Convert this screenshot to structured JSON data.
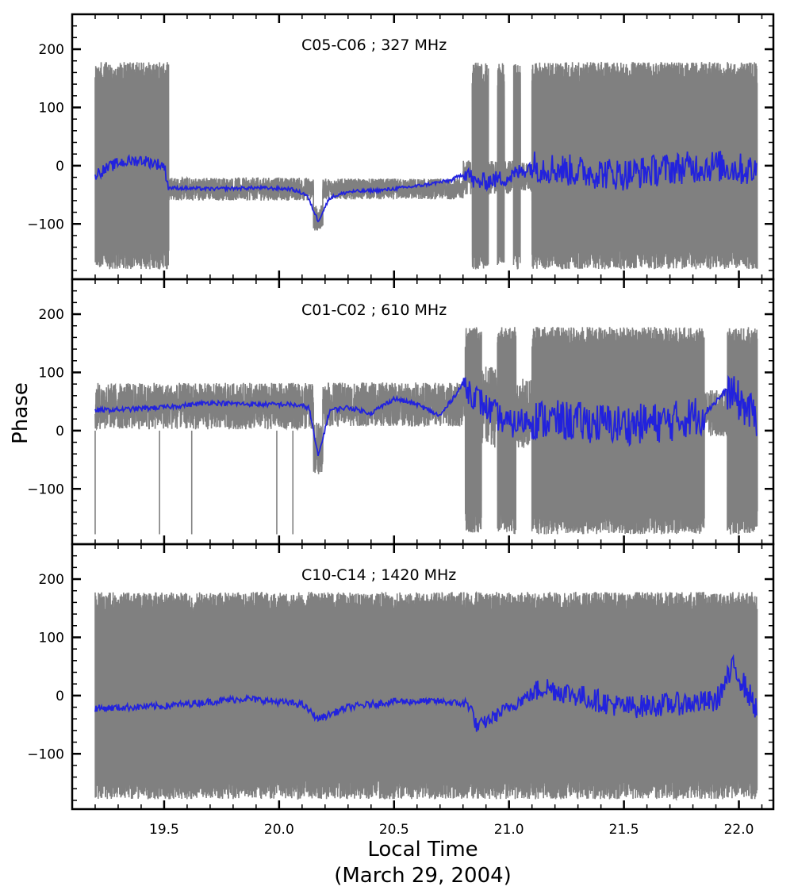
{
  "figure": {
    "ylabel": "Phase",
    "xlabel_line1": "Local Time",
    "xlabel_line2": "(March 29, 2004)"
  },
  "colors": {
    "raw": "#808080",
    "smooth": "#2222dd",
    "axes": "#000000"
  },
  "chart_data": [
    {
      "type": "line",
      "title": "C05-C06 ; 327 MHz",
      "xlim": [
        19.1,
        22.15
      ],
      "ylim": [
        -195,
        260
      ],
      "xticks": [
        "19.5",
        "20.0",
        "20.5",
        "21.0",
        "21.5",
        "22.0"
      ],
      "yticks": [
        "200",
        "100",
        "0",
        "−100"
      ],
      "x_range": [
        19.2,
        22.08
      ],
      "series": [
        {
          "segments": [
            {
              "x": [
                19.2,
                19.52
              ],
              "center": 0,
              "spread": 178,
              "wrapped": true
            },
            {
              "x": [
                19.52,
                20.15
              ],
              "center": -40,
              "spread": 20
            },
            {
              "x": [
                20.15,
                20.19
              ],
              "center": -90,
              "spread": 22
            },
            {
              "x": [
                20.19,
                20.8
              ],
              "center": -40,
              "spread": 18
            },
            {
              "x": [
                20.8,
                20.84
              ],
              "center": -20,
              "spread": 30
            },
            {
              "x": [
                20.84,
                20.91
              ],
              "center": 0,
              "spread": 178,
              "wrapped": true
            },
            {
              "x": [
                20.91,
                20.95
              ],
              "center": -20,
              "spread": 30
            },
            {
              "x": [
                20.95,
                20.98
              ],
              "center": 0,
              "spread": 178,
              "wrapped": true
            },
            {
              "x": [
                20.98,
                21.02
              ],
              "center": -20,
              "spread": 30
            },
            {
              "x": [
                21.02,
                21.05
              ],
              "center": 0,
              "spread": 178,
              "wrapped": true
            },
            {
              "x": [
                21.05,
                21.1
              ],
              "center": -20,
              "spread": 25
            },
            {
              "x": [
                21.1,
                22.08
              ],
              "center": 0,
              "spread": 178,
              "wrapped": true
            }
          ]
        },
        {
          "points": [
            [
              19.2,
              -15
            ],
            [
              19.3,
              5
            ],
            [
              19.4,
              10
            ],
            [
              19.5,
              0
            ],
            [
              19.52,
              -38
            ],
            [
              19.7,
              -40
            ],
            [
              19.9,
              -38
            ],
            [
              20.05,
              -40
            ],
            [
              20.12,
              -50
            ],
            [
              20.17,
              -95
            ],
            [
              20.22,
              -55
            ],
            [
              20.3,
              -45
            ],
            [
              20.45,
              -42
            ],
            [
              20.6,
              -35
            ],
            [
              20.75,
              -25
            ],
            [
              20.82,
              -10
            ],
            [
              20.85,
              -30
            ],
            [
              21.0,
              -20
            ],
            [
              21.1,
              0
            ],
            [
              21.3,
              -10
            ],
            [
              21.5,
              -15
            ],
            [
              21.7,
              -5
            ],
            [
              21.9,
              0
            ],
            [
              22.08,
              -10
            ]
          ],
          "noise": [
            {
              "x": [
                19.2,
                19.52
              ],
              "amp": 10
            },
            {
              "x": [
                19.52,
                20.8
              ],
              "amp": 3
            },
            {
              "x": [
                20.8,
                21.1
              ],
              "amp": 15
            },
            {
              "x": [
                21.1,
                22.08
              ],
              "amp": 28
            }
          ]
        }
      ]
    },
    {
      "type": "line",
      "title": "C01-C02 ; 610 MHz",
      "xlim": [
        19.1,
        22.15
      ],
      "ylim": [
        -195,
        260
      ],
      "xticks": [
        "19.5",
        "20.0",
        "20.5",
        "21.0",
        "21.5",
        "22.0"
      ],
      "yticks": [
        "200",
        "100",
        "0",
        "−100"
      ],
      "x_range": [
        19.2,
        22.08
      ],
      "series": [
        {
          "segments": [
            {
              "x": [
                19.2,
                20.15
              ],
              "center": 42,
              "spread": 40
            },
            {
              "x": [
                20.15,
                20.19
              ],
              "center": -30,
              "spread": 45
            },
            {
              "x": [
                20.19,
                20.81
              ],
              "center": 45,
              "spread": 38
            },
            {
              "x": [
                20.81,
                20.88
              ],
              "center": 0,
              "spread": 178,
              "wrapped": true
            },
            {
              "x": [
                20.88,
                20.95
              ],
              "center": 40,
              "spread": 70
            },
            {
              "x": [
                20.95,
                21.03
              ],
              "center": 0,
              "spread": 178,
              "wrapped": true
            },
            {
              "x": [
                21.03,
                21.1
              ],
              "center": 30,
              "spread": 60
            },
            {
              "x": [
                21.1,
                21.85
              ],
              "center": 0,
              "spread": 178,
              "wrapped": true
            },
            {
              "x": [
                21.85,
                21.95
              ],
              "center": 30,
              "spread": 40
            },
            {
              "x": [
                21.95,
                22.08
              ],
              "center": 0,
              "spread": 178,
              "wrapped": true
            }
          ],
          "spikes": [
            19.2,
            19.48,
            19.62,
            19.99,
            20.06
          ]
        },
        {
          "points": [
            [
              19.2,
              35
            ],
            [
              19.3,
              36
            ],
            [
              19.5,
              40
            ],
            [
              19.7,
              48
            ],
            [
              19.9,
              45
            ],
            [
              20.05,
              45
            ],
            [
              20.13,
              40
            ],
            [
              20.17,
              -45
            ],
            [
              20.22,
              35
            ],
            [
              20.3,
              40
            ],
            [
              20.4,
              30
            ],
            [
              20.5,
              55
            ],
            [
              20.6,
              45
            ],
            [
              20.7,
              25
            ],
            [
              20.8,
              80
            ],
            [
              20.9,
              40
            ],
            [
              21.0,
              10
            ],
            [
              21.1,
              20
            ],
            [
              21.3,
              15
            ],
            [
              21.5,
              10
            ],
            [
              21.7,
              15
            ],
            [
              21.85,
              30
            ],
            [
              21.95,
              70
            ],
            [
              22.08,
              20
            ]
          ],
          "noise": [
            {
              "x": [
                19.2,
                20.8
              ],
              "amp": 4
            },
            {
              "x": [
                20.8,
                21.1
              ],
              "amp": 25
            },
            {
              "x": [
                21.1,
                21.85
              ],
              "amp": 35
            },
            {
              "x": [
                21.85,
                21.95
              ],
              "amp": 6
            },
            {
              "x": [
                21.95,
                22.08
              ],
              "amp": 35
            }
          ]
        }
      ]
    },
    {
      "type": "line",
      "title": "C10-C14 ; 1420 MHz",
      "xlim": [
        19.1,
        22.15
      ],
      "ylim": [
        -195,
        260
      ],
      "xticks": [
        "19.5",
        "20.0",
        "20.5",
        "21.0",
        "21.5",
        "22.0"
      ],
      "yticks": [
        "200",
        "100",
        "0",
        "−100"
      ],
      "x_range": [
        19.2,
        22.08
      ],
      "series": [
        {
          "segments": [
            {
              "x": [
                19.2,
                22.08
              ],
              "center": 0,
              "spread": 178,
              "wrapped": true
            }
          ]
        },
        {
          "points": [
            [
              19.2,
              -22
            ],
            [
              19.5,
              -18
            ],
            [
              19.85,
              -5
            ],
            [
              20.1,
              -15
            ],
            [
              20.17,
              -40
            ],
            [
              20.3,
              -20
            ],
            [
              20.5,
              -10
            ],
            [
              20.7,
              -10
            ],
            [
              20.83,
              -15
            ],
            [
              20.86,
              -55
            ],
            [
              21.0,
              -20
            ],
            [
              21.15,
              15
            ],
            [
              21.3,
              0
            ],
            [
              21.5,
              -20
            ],
            [
              21.7,
              -15
            ],
            [
              21.9,
              -10
            ],
            [
              21.98,
              50
            ],
            [
              22.08,
              -25
            ]
          ],
          "noise": [
            {
              "x": [
                19.2,
                20.8
              ],
              "amp": 6
            },
            {
              "x": [
                20.8,
                21.1
              ],
              "amp": 12
            },
            {
              "x": [
                21.1,
                21.95
              ],
              "amp": 20
            },
            {
              "x": [
                21.95,
                22.08
              ],
              "amp": 22
            }
          ]
        }
      ]
    }
  ]
}
